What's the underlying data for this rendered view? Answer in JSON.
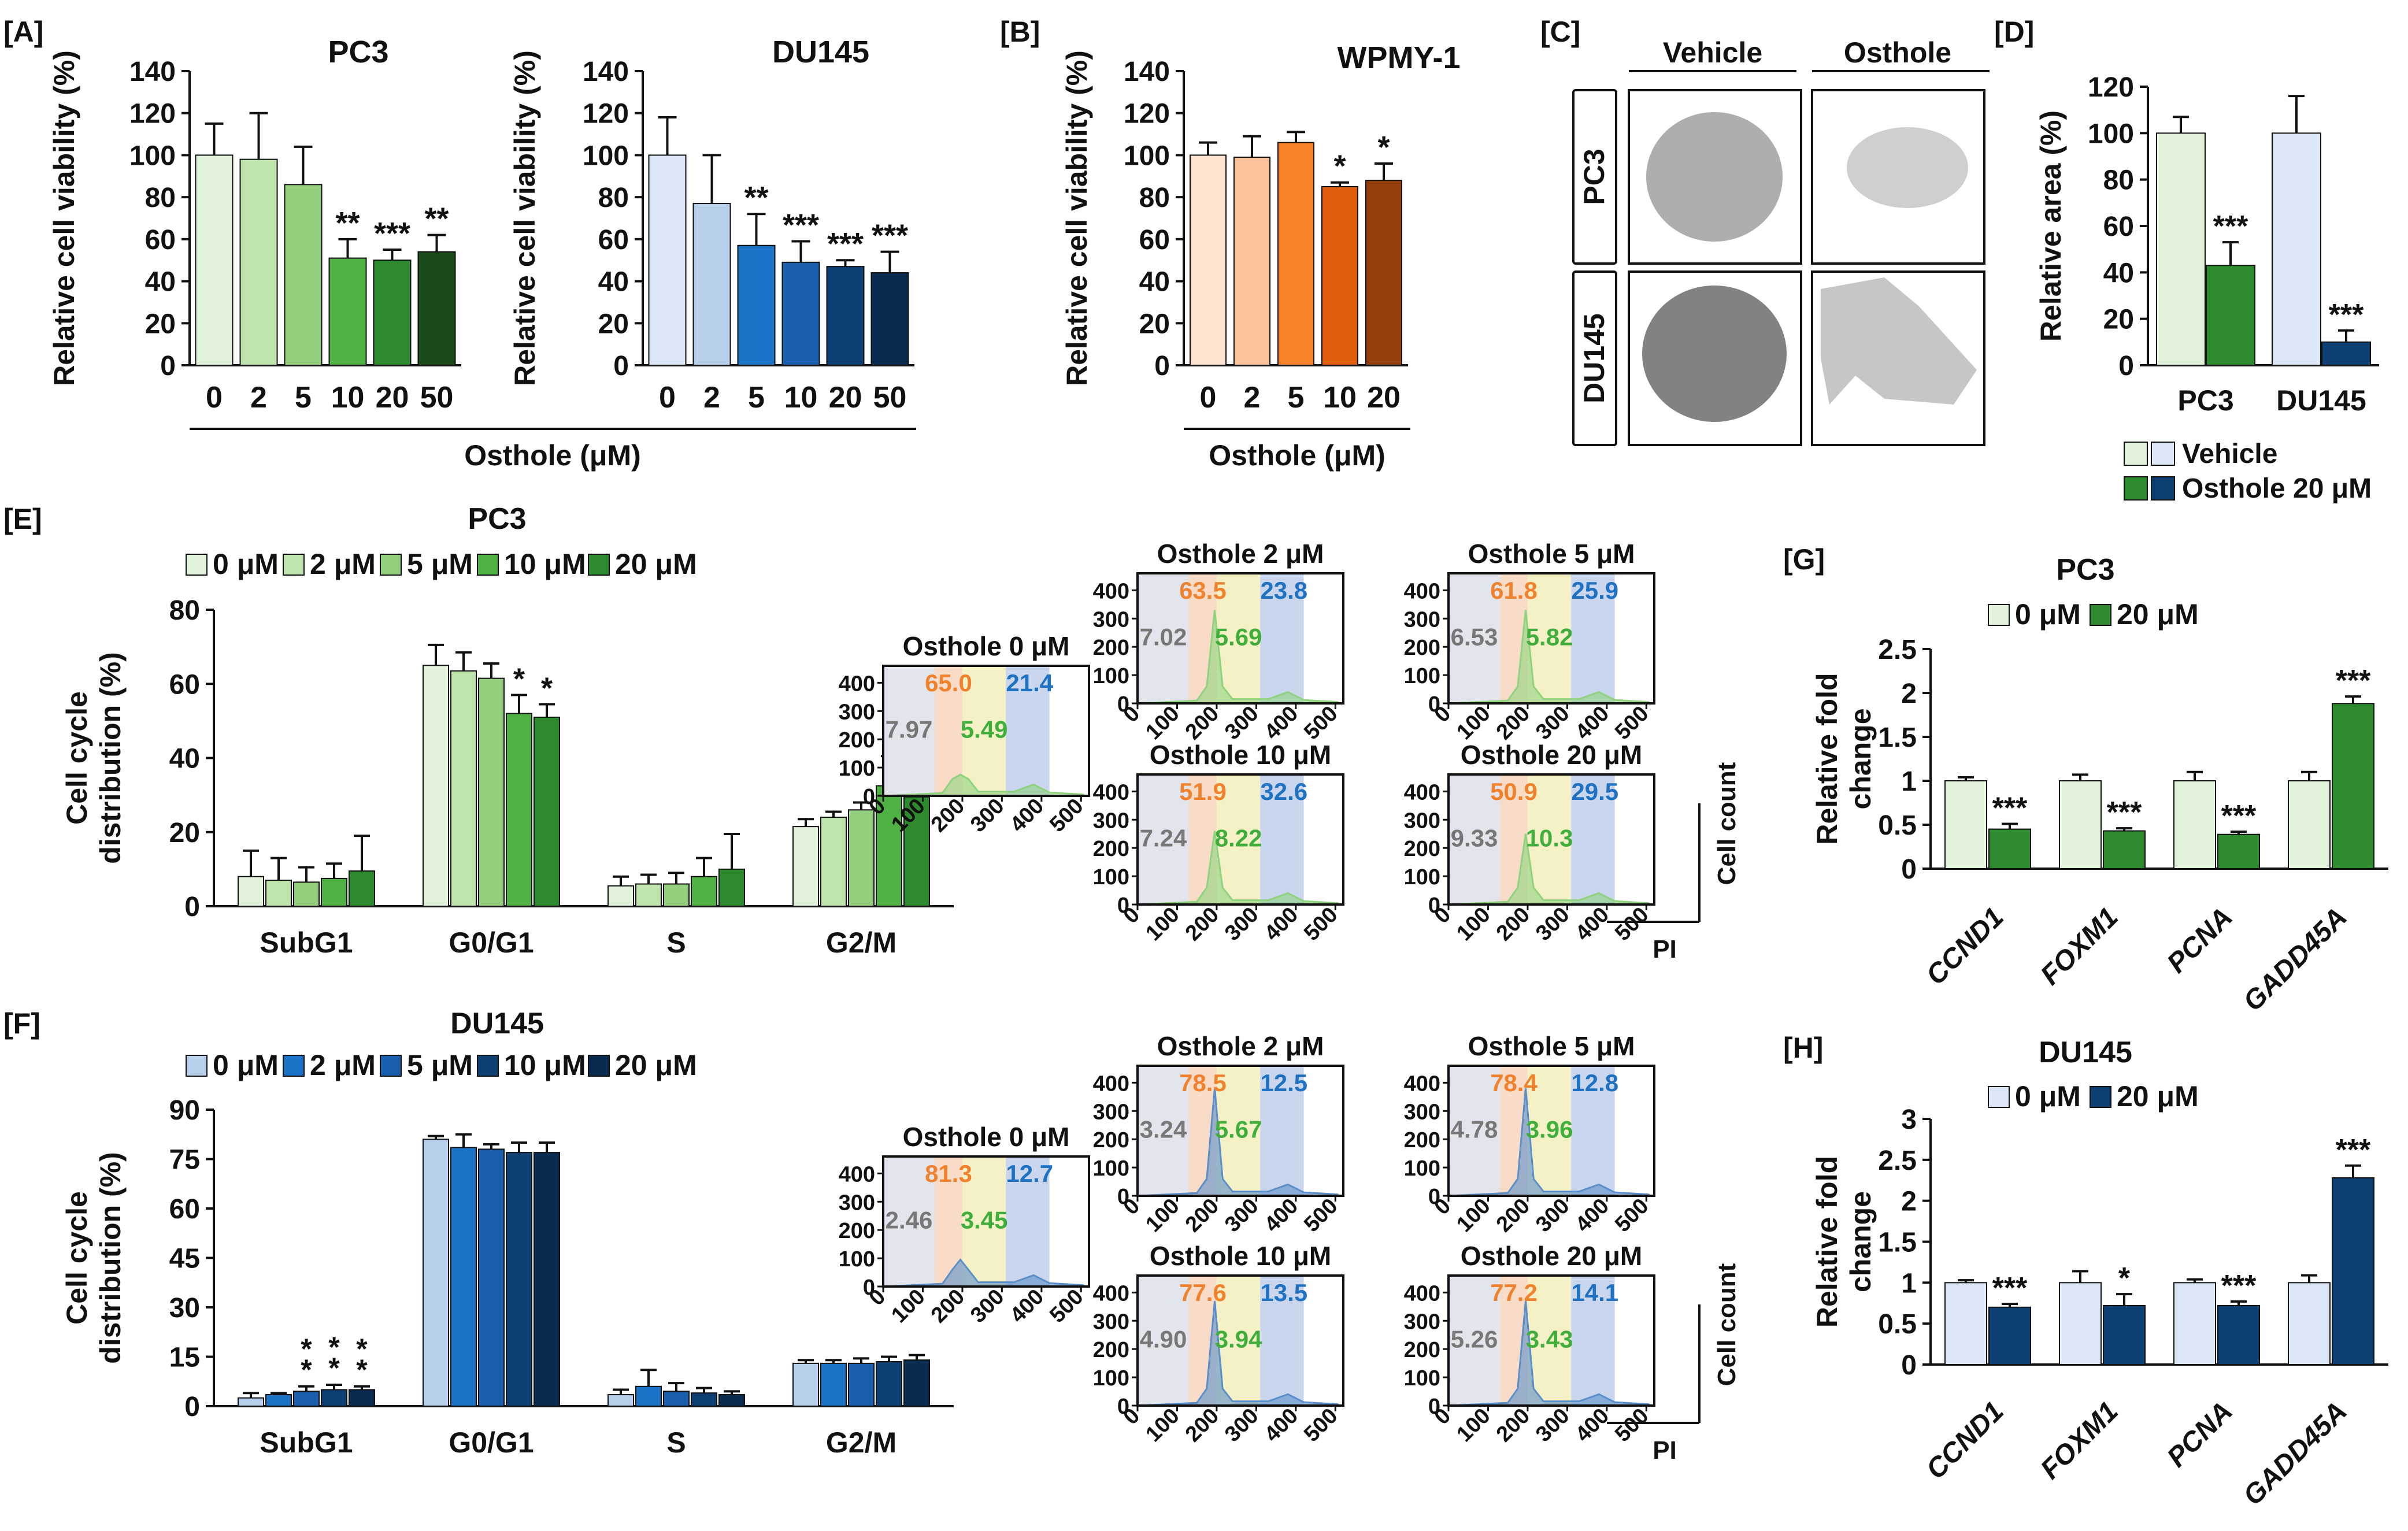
{
  "colors": {
    "green": [
      "#e2f3db",
      "#bfe4ad",
      "#93cf7d",
      "#4fb143",
      "#2e8a2e",
      "#1b4a1b"
    ],
    "blue": [
      "#dbe7f6",
      "#b7cfea",
      "#1c74c9",
      "#1a5fae",
      "#0e3f73",
      "#082b4f"
    ],
    "orange": [
      "#fde3d0",
      "#fbc49a",
      "#f7842a",
      "#e05d0d",
      "#943e0c"
    ],
    "hist_green": "#8fd37e",
    "hist_blue": "#5b8fc9",
    "label_gray": "#777777",
    "label_orange": "#f0822d",
    "label_green": "#3fae3a",
    "label_blue": "#1f72c2",
    "band_gray": "#e3e5ec",
    "band_orange": "#f9dcc8",
    "band_yellow": "#f5f1c6",
    "band_blue": "#c9d6ee",
    "image_gray": "#8a8a8a"
  },
  "panel_letters": {
    "A": "[A]",
    "B": "[B]",
    "C": "[C]",
    "D": "[D]",
    "E": "[E]",
    "F": "[F]",
    "G": "[G]",
    "H": "[H]"
  },
  "osthole_axis_label": "Osthole (μM)",
  "chart_data": [
    {
      "id": "A1",
      "type": "bar",
      "title": "PC3",
      "ylabel": "Relative cell viability (%)",
      "categories": [
        "0",
        "2",
        "5",
        "10",
        "20",
        "50"
      ],
      "values": [
        100,
        98,
        86,
        51,
        50,
        54
      ],
      "errors": [
        15,
        22,
        18,
        9,
        5,
        8
      ],
      "significance": [
        "",
        "",
        "",
        "**",
        "***",
        "**"
      ],
      "ylim": [
        0,
        140
      ],
      "yticks": [
        "0",
        "20",
        "40",
        "60",
        "80",
        "100",
        "120",
        "140"
      ],
      "colors": "green"
    },
    {
      "id": "A2",
      "type": "bar",
      "title": "DU145",
      "ylabel": "Relative cell viability (%)",
      "categories": [
        "0",
        "2",
        "5",
        "10",
        "20",
        "50"
      ],
      "values": [
        100,
        77,
        57,
        49,
        47,
        44
      ],
      "errors": [
        18,
        23,
        15,
        10,
        3,
        10
      ],
      "significance": [
        "",
        "",
        "**",
        "***",
        "***",
        "***"
      ],
      "ylim": [
        0,
        140
      ],
      "yticks": [
        "0",
        "20",
        "40",
        "60",
        "80",
        "100",
        "120",
        "140"
      ],
      "colors": "blue"
    },
    {
      "id": "B",
      "type": "bar",
      "title": "WPMY-1",
      "ylabel": "Relative cell viability (%)",
      "categories": [
        "0",
        "2",
        "5",
        "10",
        "20"
      ],
      "values": [
        100,
        99,
        106,
        85,
        88
      ],
      "errors": [
        6,
        10,
        5,
        2,
        8
      ],
      "significance": [
        "",
        "",
        "",
        "*",
        "*"
      ],
      "ylim": [
        0,
        140
      ],
      "yticks": [
        "0",
        "20",
        "40",
        "60",
        "80",
        "100",
        "120",
        "140"
      ],
      "colors": "orange"
    },
    {
      "id": "C",
      "type": "image_grid",
      "columns": [
        "Vehicle",
        "Osthole"
      ],
      "rows": [
        "PC3",
        "DU145"
      ]
    },
    {
      "id": "D",
      "type": "bar",
      "ylabel": "Relative area (%)",
      "categories": [
        "PC3",
        "DU145"
      ],
      "series": [
        {
          "name": "Vehicle",
          "values": [
            100,
            100
          ],
          "errors": [
            7,
            16
          ]
        },
        {
          "name": "Osthole 20 μM",
          "values": [
            43,
            10
          ],
          "errors": [
            10,
            5
          ]
        }
      ],
      "significance": [
        "***",
        "***"
      ],
      "ylim": [
        0,
        120
      ],
      "yticks": [
        "0",
        "20",
        "40",
        "60",
        "80",
        "100",
        "120"
      ],
      "legend": [
        "Vehicle",
        "Osthole 20 μM"
      ]
    },
    {
      "id": "E",
      "type": "bar",
      "title": "PC3",
      "ylabel": "Cell cycle distribution (%)",
      "categories": [
        "SubG1",
        "G0/G1",
        "S",
        "G2/M"
      ],
      "series": [
        {
          "name": "0 μM",
          "values": [
            8,
            65,
            5.5,
            21.5
          ],
          "errors": [
            7,
            5.5,
            2.5,
            2
          ]
        },
        {
          "name": "2 μM",
          "values": [
            7,
            63.5,
            6,
            24
          ],
          "errors": [
            6,
            5,
            2.5,
            1.5
          ]
        },
        {
          "name": "5 μM",
          "values": [
            6.5,
            61.5,
            6,
            26
          ],
          "errors": [
            4,
            4,
            3,
            2
          ]
        },
        {
          "name": "10 μM",
          "values": [
            7.5,
            52,
            8,
            32.5
          ],
          "errors": [
            4,
            5,
            5,
            8
          ]
        },
        {
          "name": "20 μM",
          "values": [
            9.5,
            51,
            10,
            29.5
          ],
          "errors": [
            9.5,
            3.5,
            9.5,
            7.5
          ]
        }
      ],
      "significance": {
        "1": [
          "",
          "",
          "",
          "*",
          "*"
        ]
      },
      "ylim": [
        0,
        80
      ],
      "yticks": [
        "0",
        "20",
        "40",
        "60",
        "80"
      ],
      "legend": [
        "0 μM",
        "2 μM",
        "5 μM",
        "10 μM",
        "20 μM"
      ]
    },
    {
      "id": "F",
      "type": "bar",
      "title": "DU145",
      "ylabel": "Cell cycle distribution (%)",
      "categories": [
        "SubG1",
        "G0/G1",
        "S",
        "G2/M"
      ],
      "series": [
        {
          "name": "0 μM",
          "values": [
            2.5,
            81,
            3.5,
            13
          ],
          "errors": [
            1.5,
            1,
            1.5,
            1
          ]
        },
        {
          "name": "2 μM",
          "values": [
            3.5,
            78.5,
            6,
            13
          ],
          "errors": [
            0.5,
            4,
            5,
            1
          ]
        },
        {
          "name": "5 μM",
          "values": [
            4.5,
            78,
            4.5,
            13
          ],
          "errors": [
            1.5,
            1.5,
            2.5,
            1.5
          ]
        },
        {
          "name": "10 μM",
          "values": [
            5,
            77,
            4,
            13.5
          ],
          "errors": [
            1.5,
            3,
            1.5,
            1.5
          ]
        },
        {
          "name": "20 μM",
          "values": [
            5,
            77,
            3.5,
            14
          ],
          "errors": [
            1,
            3,
            1,
            1.5
          ]
        }
      ],
      "significance": {
        "0": [
          "",
          "",
          "*\n*",
          "*\n*",
          "*\n*"
        ]
      },
      "ylim": [
        0,
        90
      ],
      "yticks": [
        "0",
        "15",
        "30",
        "45",
        "60",
        "75",
        "90"
      ],
      "legend": [
        "0 μM",
        "2 μM",
        "5 μM",
        "10 μM",
        "20 μM"
      ]
    },
    {
      "id": "G",
      "type": "bar",
      "title": "PC3",
      "ylabel": "Relative fold change",
      "categories": [
        "CCND1",
        "FOXM1",
        "PCNA",
        "GADD45A"
      ],
      "series": [
        {
          "name": "0 μM",
          "values": [
            1,
            1,
            1,
            1
          ],
          "errors": [
            0.04,
            0.07,
            0.1,
            0.1
          ]
        },
        {
          "name": "20 μM",
          "values": [
            0.45,
            0.43,
            0.39,
            1.88
          ],
          "errors": [
            0.06,
            0.03,
            0.03,
            0.08
          ]
        }
      ],
      "significance": [
        "***",
        "***",
        "***",
        "***"
      ],
      "ylim": [
        0,
        2.5
      ],
      "yticks": [
        "0",
        "0.5",
        "1",
        "1.5",
        "2",
        "2.5"
      ],
      "legend": [
        "0 μM",
        "20 μM"
      ]
    },
    {
      "id": "H",
      "type": "bar",
      "title": "DU145",
      "ylabel": "Relative fold change",
      "categories": [
        "CCND1",
        "FOXM1",
        "PCNA",
        "GADD45A"
      ],
      "series": [
        {
          "name": "0 μM",
          "values": [
            1,
            1,
            1,
            1
          ],
          "errors": [
            0.03,
            0.14,
            0.04,
            0.09
          ]
        },
        {
          "name": "20 μM",
          "values": [
            0.7,
            0.72,
            0.72,
            2.28
          ],
          "errors": [
            0.04,
            0.14,
            0.05,
            0.15
          ]
        }
      ],
      "significance": [
        "***",
        "*",
        "***",
        "***"
      ],
      "ylim": [
        0,
        3
      ],
      "yticks": [
        "0",
        "0.5",
        "1",
        "1.5",
        "2",
        "2.5",
        "3"
      ],
      "legend": [
        "0 μM",
        "20 μM"
      ]
    },
    {
      "id": "E_hist",
      "type": "histogram",
      "xticks": [
        "0",
        "100",
        "200",
        "300",
        "400",
        "500"
      ],
      "yticks": [
        "0",
        "100",
        "200",
        "300",
        "400"
      ],
      "xlabel": "PI",
      "ylabel": "Cell count",
      "panels": [
        {
          "title": "Osthole 0 μM",
          "labels": [
            "7.97",
            "65.0",
            "5.49",
            "21.4"
          ]
        },
        {
          "title": "Osthole 2 μM",
          "labels": [
            "7.02",
            "63.5",
            "5.69",
            "23.8"
          ]
        },
        {
          "title": "Osthole 5 μM",
          "labels": [
            "6.53",
            "61.8",
            "5.82",
            "25.9"
          ]
        },
        {
          "title": "Osthole 10 μM",
          "labels": [
            "7.24",
            "51.9",
            "8.22",
            "32.6"
          ]
        },
        {
          "title": "Osthole 20 μM",
          "labels": [
            "9.33",
            "50.9",
            "10.3",
            "29.5"
          ]
        }
      ]
    },
    {
      "id": "F_hist",
      "type": "histogram",
      "xticks": [
        "0",
        "100",
        "200",
        "300",
        "400",
        "500"
      ],
      "yticks": [
        "0",
        "100",
        "200",
        "300",
        "400"
      ],
      "xlabel": "PI",
      "ylabel": "Cell count",
      "panels": [
        {
          "title": "Osthole 0 μM",
          "labels": [
            "2.46",
            "81.3",
            "3.45",
            "12.7"
          ]
        },
        {
          "title": "Osthole 2 μM",
          "labels": [
            "3.24",
            "78.5",
            "5.67",
            "12.5"
          ]
        },
        {
          "title": "Osthole 5 μM",
          "labels": [
            "4.78",
            "78.4",
            "3.96",
            "12.8"
          ]
        },
        {
          "title": "Osthole 10 μM",
          "labels": [
            "4.90",
            "77.6",
            "3.94",
            "13.5"
          ]
        },
        {
          "title": "Osthole 20 μM",
          "labels": [
            "5.26",
            "77.2",
            "3.43",
            "14.1"
          ]
        }
      ]
    }
  ]
}
